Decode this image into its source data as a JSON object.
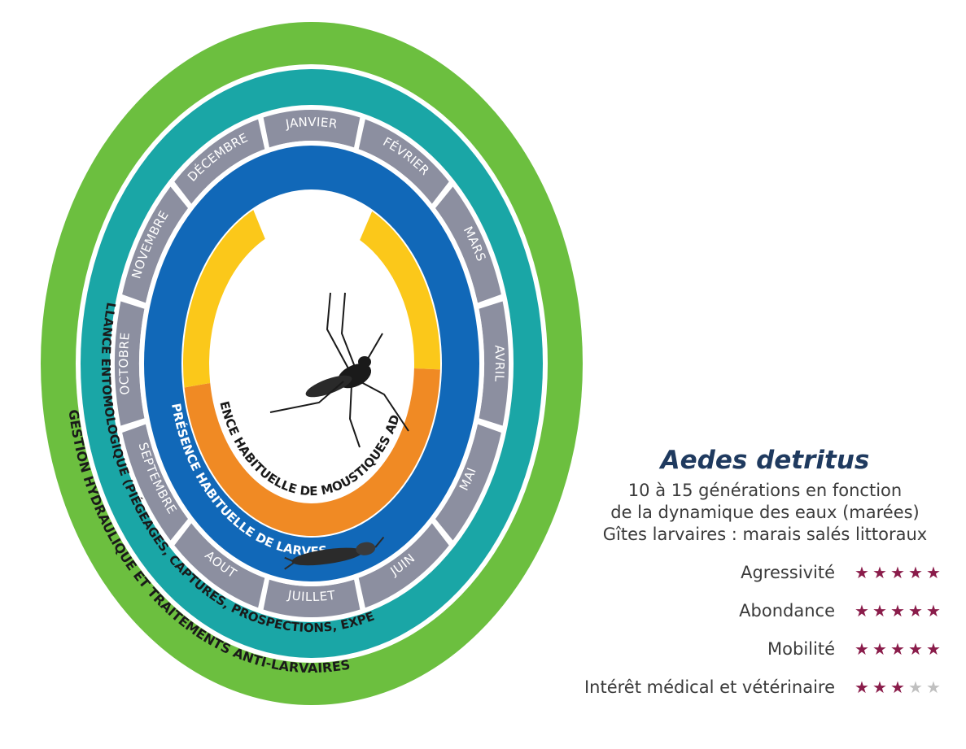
{
  "diagram": {
    "months": [
      "JANVIER",
      "FÉVRIER",
      "MARS",
      "AVRIL",
      "MAI",
      "JUIN",
      "JUILLET",
      "AOUT",
      "SEPTEMBRE",
      "OCTOBRE",
      "NOVEMBRE",
      "DÉCEMBRE"
    ],
    "rings": {
      "adults": "PRÉSENCE HABITUELLE DE MOUSTIQUES ADULTES",
      "larvae": "PRÉSENCE HABITUELLE DE LARVES",
      "surveillance": "SURVEILLANCE ENTOMOLOGIQUE (PIÉGEAGES, CAPTURES, PROSPECTIONS, EXPERTISES)",
      "management": "GESTION HYDRAULIQUE ET TRAITEMENTS ANTI-LARVAIRES"
    },
    "colors": {
      "green": "#6cbf3f",
      "teal": "#1aa6a6",
      "months": "#8c8fa0",
      "blue": "#1168b8",
      "orange": "#f08a24",
      "yellow": "#fbc81a"
    },
    "icons": [
      "mosquito-icon",
      "larva-icon"
    ]
  },
  "info": {
    "species": "Aedes detritus",
    "lines": [
      "10 à 15 générations en fonction",
      "de la dynamique des eaux (marées)",
      "Gîtes larvaires : marais salés littoraux"
    ],
    "ratings": [
      {
        "label": "Agressivité",
        "value": 5,
        "max": 5
      },
      {
        "label": "Abondance",
        "value": 5,
        "max": 5
      },
      {
        "label": "Mobilité",
        "value": 5,
        "max": 5
      },
      {
        "label": "Intérêt médical et vétérinaire",
        "value": 3,
        "max": 5
      }
    ],
    "star_color": "#8a1c4a",
    "star_empty_color": "#c0c0c0"
  }
}
